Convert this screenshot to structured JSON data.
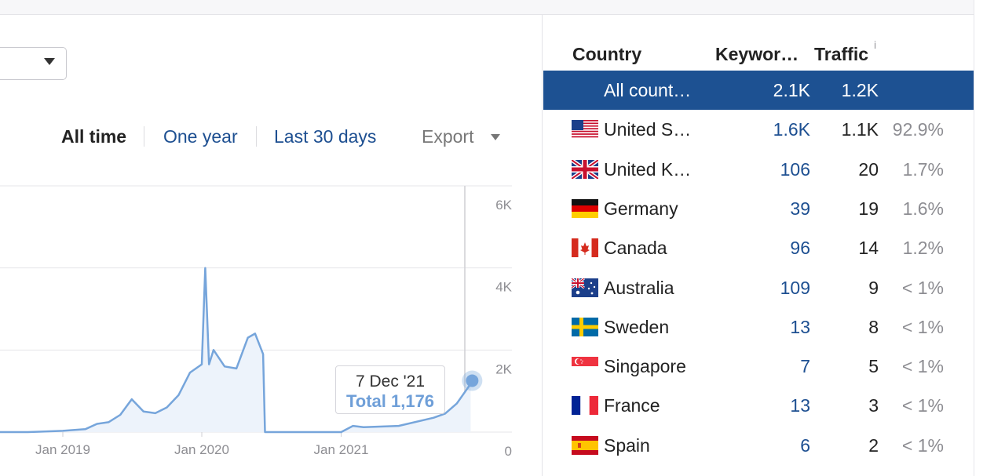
{
  "range": {
    "all_time": "All time",
    "one_year": "One year",
    "last_30_days": "Last 30 days",
    "export": "Export"
  },
  "chart_data": {
    "type": "area",
    "title": "",
    "xlabel": "",
    "ylabel": "",
    "x_ticks": [
      "Jan 2019",
      "Jan 2020",
      "Jan 2021"
    ],
    "y_ticks": [
      "6K",
      "4K",
      "2K",
      "0"
    ],
    "ylim": [
      0,
      6000
    ],
    "grid": true,
    "series": [
      {
        "x": [
          "2018-05-01",
          "2018-09-01",
          "2018-10-01",
          "2018-11-01",
          "2019-01-01",
          "2019-03-01",
          "2019-04-01",
          "2019-05-01",
          "2019-06-01",
          "2019-07-01",
          "2019-08-01",
          "2019-09-01",
          "2019-10-01",
          "2019-11-01",
          "2019-12-01",
          "2020-01-01",
          "2020-01-10",
          "2020-01-20",
          "2020-02-01",
          "2020-03-01",
          "2020-04-01",
          "2020-05-01",
          "2020-05-20",
          "2020-06-10",
          "2020-06-15",
          "2020-07-01",
          "2020-09-01",
          "2020-11-01",
          "2021-01-01",
          "2021-02-01",
          "2021-03-01",
          "2021-06-01",
          "2021-09-01",
          "2021-10-01",
          "2021-11-01",
          "2021-12-07"
        ],
        "values": [
          0,
          0,
          0,
          10,
          30,
          70,
          200,
          240,
          420,
          800,
          500,
          460,
          600,
          900,
          1450,
          1650,
          4000,
          1650,
          2000,
          1600,
          1550,
          2300,
          2400,
          1900,
          0,
          0,
          0,
          0,
          0,
          150,
          120,
          150,
          350,
          450,
          700,
          1176
        ]
      }
    ]
  },
  "tooltip": {
    "date": "7 Dec '21",
    "total": "Total 1,176"
  },
  "table": {
    "headers": {
      "country": "Country",
      "keywords": "Keywor…",
      "traffic": "Traffic",
      "info": "i"
    },
    "rows": [
      {
        "name": "All count…",
        "keywords": "2.1K",
        "traffic": "1.2K",
        "share": "",
        "flag": "",
        "selected": true
      },
      {
        "name": "United S…",
        "keywords": "1.6K",
        "traffic": "1.1K",
        "share": "92.9%",
        "flag": "us-flag"
      },
      {
        "name": "United K…",
        "keywords": "106",
        "traffic": "20",
        "share": "1.7%",
        "flag": "uk-flag"
      },
      {
        "name": "Germany",
        "keywords": "39",
        "traffic": "19",
        "share": "1.6%",
        "flag": "de-flag"
      },
      {
        "name": "Canada",
        "keywords": "96",
        "traffic": "14",
        "share": "1.2%",
        "flag": "ca-flag"
      },
      {
        "name": "Australia",
        "keywords": "109",
        "traffic": "9",
        "share": "< 1%",
        "flag": "au-flag"
      },
      {
        "name": "Sweden",
        "keywords": "13",
        "traffic": "8",
        "share": "< 1%",
        "flag": "se-flag"
      },
      {
        "name": "Singapore",
        "keywords": "7",
        "traffic": "5",
        "share": "< 1%",
        "flag": "sg-flag"
      },
      {
        "name": "France",
        "keywords": "13",
        "traffic": "3",
        "share": "< 1%",
        "flag": "fr-flag"
      },
      {
        "name": "Spain",
        "keywords": "6",
        "traffic": "2",
        "share": "< 1%",
        "flag": "es-flag"
      }
    ]
  },
  "colors": {
    "accent": "#1d5192",
    "link": "#1d4f91",
    "line": "#76a5db",
    "area": "#edf3fb"
  }
}
